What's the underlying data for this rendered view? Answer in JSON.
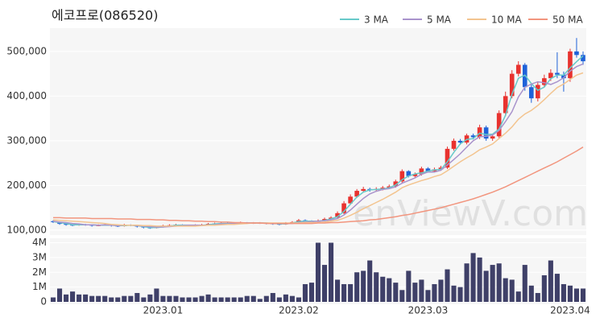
{
  "chart_data": [
    {
      "type": "candlestick",
      "title": "에코프로(086520)",
      "watermark": "enViewV.com",
      "categories": [
        null,
        null,
        null,
        null,
        null,
        null,
        null,
        null,
        null,
        null,
        null,
        null,
        null,
        null,
        null,
        null,
        null,
        "2023.01",
        null,
        null,
        null,
        null,
        null,
        null,
        null,
        null,
        null,
        null,
        null,
        null,
        null,
        null,
        null,
        null,
        null,
        null,
        null,
        null,
        "2023.02",
        null,
        null,
        null,
        null,
        null,
        null,
        null,
        null,
        null,
        null,
        null,
        null,
        null,
        null,
        null,
        null,
        null,
        null,
        null,
        "2023.03",
        null,
        null,
        null,
        null,
        null,
        null,
        null,
        null,
        null,
        null,
        null,
        null,
        null,
        null,
        null,
        null,
        null,
        null,
        null,
        null,
        null,
        "2023.04",
        null,
        null
      ],
      "open": [
        120000,
        118000,
        114000,
        112000,
        111000,
        113000,
        112000,
        110000,
        111000,
        112000,
        110000,
        109000,
        112000,
        111000,
        108000,
        106000,
        105000,
        107000,
        110000,
        111000,
        112000,
        110000,
        110000,
        111000,
        112000,
        114000,
        115000,
        116000,
        115000,
        116000,
        117000,
        116000,
        116000,
        116000,
        115000,
        114000,
        113000,
        116000,
        118000,
        122000,
        120000,
        119000,
        121000,
        125000,
        128000,
        138000,
        160000,
        175000,
        188000,
        192000,
        190000,
        192000,
        195000,
        198000,
        209000,
        232000,
        221000,
        225000,
        238000,
        232000,
        236000,
        240000,
        282000,
        300000,
        296000,
        312000,
        308000,
        330000,
        305000,
        310000,
        362000,
        400000,
        450000,
        470000,
        420000,
        395000,
        425000,
        440000,
        452000,
        448000,
        440000,
        500000,
        492000
      ],
      "high": [
        122000,
        119000,
        116000,
        114000,
        115000,
        114000,
        113000,
        113000,
        114000,
        113000,
        112000,
        114000,
        113000,
        112000,
        109000,
        108000,
        109000,
        112000,
        113000,
        114000,
        113000,
        112000,
        113000,
        114000,
        116000,
        117000,
        118000,
        117000,
        118000,
        119000,
        118000,
        118000,
        118000,
        117000,
        116000,
        115000,
        118000,
        120000,
        125000,
        124000,
        122000,
        124000,
        128000,
        131000,
        142000,
        165000,
        180000,
        192000,
        197000,
        195000,
        196000,
        199000,
        202000,
        213000,
        236000,
        234000,
        229000,
        242000,
        241000,
        240000,
        244000,
        287000,
        305000,
        304000,
        316000,
        316000,
        336000,
        334000,
        315000,
        368000,
        410000,
        458000,
        478000,
        474000,
        428000,
        432000,
        448000,
        460000,
        498000,
        455000,
        506000,
        530000,
        500000
      ],
      "low": [
        116000,
        112000,
        110000,
        109000,
        110000,
        110000,
        108000,
        109000,
        110000,
        108000,
        107000,
        108000,
        109000,
        106000,
        104000,
        103000,
        104000,
        106000,
        109000,
        110000,
        108000,
        108000,
        109000,
        110000,
        111000,
        113000,
        114000,
        113000,
        114000,
        115000,
        114000,
        114000,
        114000,
        113000,
        112000,
        111000,
        112000,
        115000,
        117000,
        118000,
        117000,
        118000,
        120000,
        123000,
        127000,
        136000,
        158000,
        172000,
        185000,
        186000,
        187000,
        189000,
        192000,
        195000,
        206000,
        218000,
        218000,
        222000,
        229000,
        229000,
        233000,
        237000,
        278000,
        291000,
        292000,
        303000,
        304000,
        300000,
        300000,
        306000,
        355000,
        395000,
        444000,
        412000,
        385000,
        388000,
        420000,
        434000,
        440000,
        410000,
        432000,
        486000,
        470000
      ],
      "close": [
        118000,
        114000,
        112000,
        111000,
        113000,
        112000,
        110000,
        111000,
        112000,
        110000,
        109000,
        112000,
        111000,
        108000,
        106000,
        105000,
        107000,
        110000,
        111000,
        112000,
        110000,
        110000,
        111000,
        112000,
        114000,
        115000,
        116000,
        115000,
        116000,
        117000,
        116000,
        116000,
        116000,
        115000,
        114000,
        113000,
        116000,
        118000,
        122000,
        120000,
        119000,
        121000,
        125000,
        128000,
        138000,
        160000,
        175000,
        188000,
        192000,
        190000,
        192000,
        195000,
        198000,
        209000,
        232000,
        221000,
        225000,
        238000,
        232000,
        236000,
        240000,
        282000,
        300000,
        296000,
        312000,
        308000,
        330000,
        305000,
        310000,
        362000,
        400000,
        450000,
        470000,
        420000,
        395000,
        425000,
        440000,
        452000,
        448000,
        440000,
        500000,
        492000,
        478000
      ],
      "up_color": "#e8322f",
      "down_color": "#1f62d9",
      "series": [
        {
          "name": "3 MA",
          "color": "#67c9c9",
          "values": [
            119000,
            117000,
            115000,
            112000,
            112000,
            112000,
            112000,
            111000,
            111000,
            111000,
            110000,
            110000,
            111000,
            110000,
            108000,
            106000,
            106000,
            107000,
            109000,
            111000,
            111000,
            111000,
            110000,
            111000,
            112000,
            114000,
            115000,
            115000,
            116000,
            116000,
            116000,
            116000,
            116000,
            116000,
            115000,
            114000,
            114000,
            116000,
            119000,
            120000,
            120000,
            120000,
            122000,
            125000,
            130000,
            142000,
            158000,
            174000,
            185000,
            190000,
            191000,
            192000,
            195000,
            201000,
            213000,
            221000,
            226000,
            228000,
            232000,
            235000,
            236000,
            253000,
            274000,
            293000,
            303000,
            305000,
            317000,
            314000,
            315000,
            326000,
            357000,
            404000,
            440000,
            447000,
            428000,
            413000,
            420000,
            439000,
            447000,
            447000,
            463000,
            477000,
            490000
          ]
        },
        {
          "name": "5 MA",
          "color": "#a993cc",
          "values": [
            120000,
            118000,
            117000,
            115000,
            114000,
            112000,
            112000,
            111000,
            112000,
            111000,
            110000,
            111000,
            111000,
            110000,
            109000,
            108000,
            107000,
            107000,
            108000,
            109000,
            110000,
            111000,
            111000,
            111000,
            111000,
            112000,
            114000,
            114000,
            115000,
            116000,
            116000,
            116000,
            116000,
            116000,
            115000,
            115000,
            115000,
            115000,
            117000,
            118000,
            119000,
            120000,
            121000,
            123000,
            126000,
            134000,
            145000,
            158000,
            171000,
            181000,
            187000,
            191000,
            193000,
            197000,
            205000,
            211000,
            217000,
            225000,
            230000,
            230000,
            234000,
            246000,
            258000,
            271000,
            286000,
            300000,
            309000,
            310000,
            313000,
            323000,
            343000,
            365000,
            398000,
            420000,
            427000,
            432000,
            430000,
            426000,
            432000,
            441000,
            456000,
            466000,
            472000
          ]
        },
        {
          "name": "10 MA",
          "color": "#f3c48f",
          "values": [
            123000,
            122000,
            121000,
            120000,
            119000,
            118000,
            117000,
            116000,
            115000,
            113000,
            112000,
            111000,
            111000,
            111000,
            110000,
            110000,
            109000,
            109000,
            109000,
            109000,
            109000,
            109000,
            109000,
            110000,
            111000,
            111000,
            112000,
            113000,
            113000,
            114000,
            115000,
            116000,
            116000,
            116000,
            116000,
            116000,
            116000,
            116000,
            116000,
            117000,
            117000,
            117000,
            118000,
            120000,
            122000,
            127000,
            133000,
            140000,
            148000,
            155000,
            162000,
            169000,
            177000,
            185000,
            195000,
            201000,
            206000,
            211000,
            215000,
            220000,
            224000,
            233000,
            243000,
            253000,
            262000,
            270000,
            280000,
            286000,
            293000,
            305000,
            317000,
            331000,
            348000,
            360000,
            368000,
            379000,
            392000,
            406000,
            419000,
            427000,
            437000,
            447000,
            452000
          ]
        },
        {
          "name": "50 MA",
          "color": "#f2957e",
          "values": [
            128000,
            128000,
            127000,
            127000,
            127000,
            127000,
            126000,
            126000,
            126000,
            126000,
            125000,
            125000,
            125000,
            124000,
            124000,
            124000,
            123000,
            123000,
            122000,
            122000,
            121000,
            121000,
            120000,
            120000,
            119000,
            119000,
            118000,
            118000,
            117000,
            117000,
            116000,
            116000,
            116000,
            115000,
            115000,
            115000,
            115000,
            115000,
            115000,
            115000,
            115000,
            116000,
            116000,
            117000,
            117000,
            118000,
            119000,
            120000,
            121000,
            123000,
            124000,
            126000,
            128000,
            130000,
            133000,
            135000,
            138000,
            141000,
            144000,
            147000,
            150000,
            154000,
            158000,
            162000,
            166000,
            170000,
            175000,
            180000,
            185000,
            191000,
            197000,
            204000,
            211000,
            218000,
            225000,
            232000,
            239000,
            246000,
            253000,
            261000,
            269000,
            277000,
            286000
          ]
        }
      ],
      "ylim": [
        89000,
        552000
      ],
      "yticks": [
        {
          "value": 100000,
          "label": "100,000"
        },
        {
          "value": 200000,
          "label": "200,000"
        },
        {
          "value": 300000,
          "label": "300,000"
        },
        {
          "value": 400000,
          "label": "400,000"
        },
        {
          "value": 500000,
          "label": "500,000"
        }
      ],
      "legend": "top-right"
    },
    {
      "type": "bar",
      "color": "#3f4068",
      "values": [
        300000,
        900000,
        500000,
        700000,
        500000,
        500000,
        400000,
        400000,
        400000,
        300000,
        300000,
        400000,
        400000,
        600000,
        300000,
        500000,
        900000,
        400000,
        400000,
        400000,
        300000,
        300000,
        300000,
        400000,
        500000,
        300000,
        300000,
        300000,
        300000,
        300000,
        400000,
        400000,
        200000,
        400000,
        600000,
        300000,
        500000,
        400000,
        300000,
        1200000,
        1300000,
        4000000,
        2500000,
        4000000,
        1500000,
        1200000,
        1200000,
        2000000,
        2100000,
        2800000,
        2000000,
        1700000,
        1600000,
        1300000,
        800000,
        2100000,
        1300000,
        1500000,
        800000,
        1200000,
        1500000,
        2200000,
        1100000,
        1000000,
        2600000,
        3300000,
        3000000,
        2100000,
        2500000,
        2600000,
        1600000,
        1500000,
        700000,
        2500000,
        1100000,
        600000,
        1800000,
        2800000,
        1900000,
        1200000,
        1100000,
        900000,
        900000
      ],
      "ylim": [
        0,
        4300000
      ],
      "yticks": [
        0,
        {
          "value": 1000000,
          "label": "1M"
        },
        {
          "value": 2000000,
          "label": "2M"
        },
        {
          "value": 3000000,
          "label": "3M"
        },
        {
          "value": 4000000,
          "label": "4M"
        }
      ]
    }
  ]
}
